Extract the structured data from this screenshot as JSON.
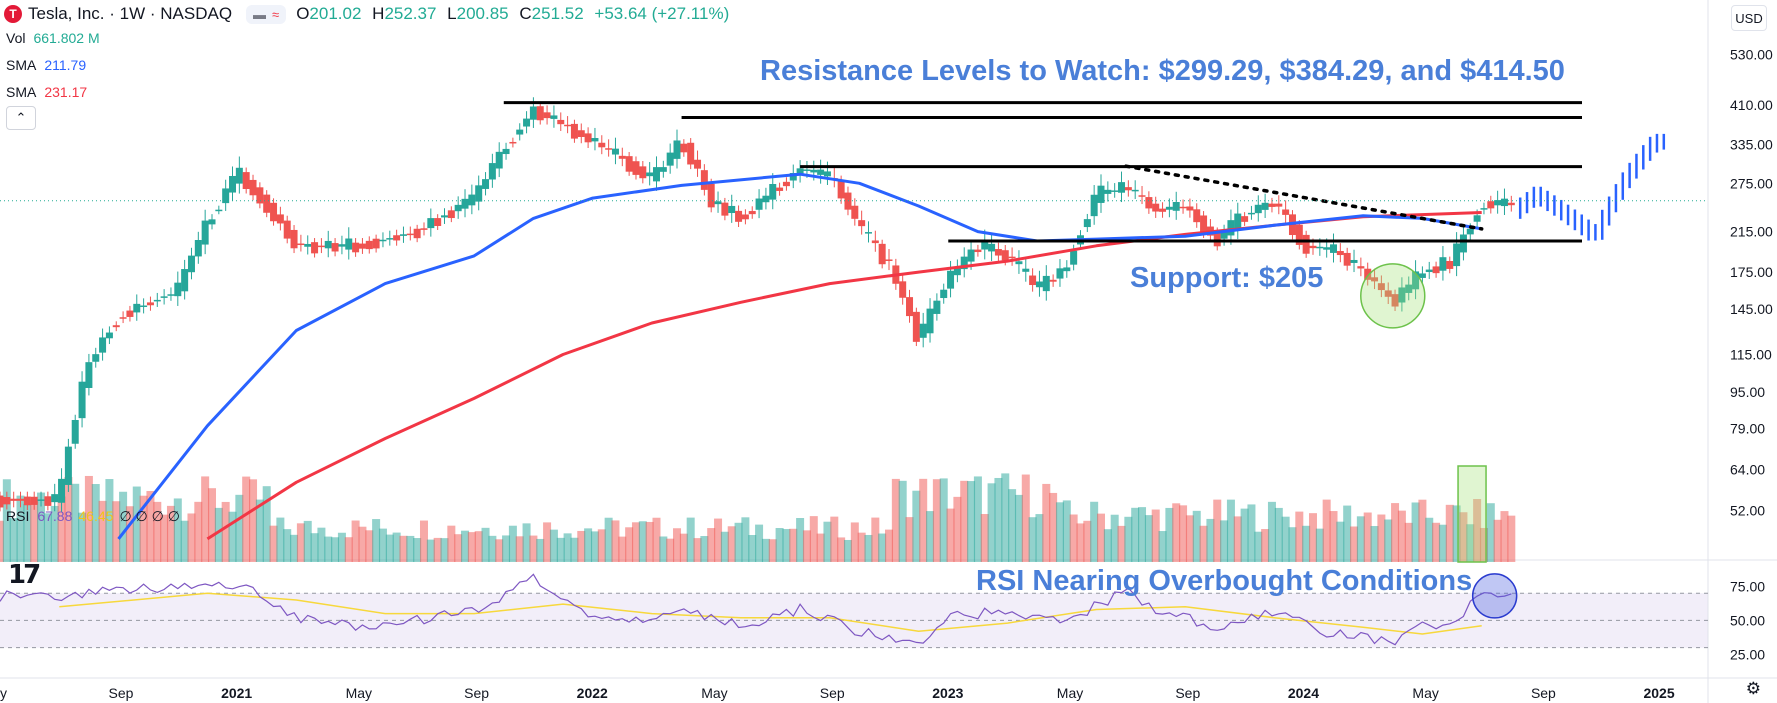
{
  "header": {
    "logo_letter": "T",
    "title": "Tesla, Inc. · 1W · NASDAQ",
    "ohlc": {
      "o_label": "O",
      "o_value": "201.02",
      "h_label": "H",
      "h_value": "252.37",
      "l_label": "L",
      "l_value": "200.85",
      "c_label": "C",
      "c_value": "251.52",
      "change": "+53.64 (+27.11%)"
    },
    "currency": "USD"
  },
  "legend": {
    "vol_label": "Vol",
    "vol_value": "661.802 M",
    "sma1_label": "SMA",
    "sma1_value": "211.79",
    "sma2_label": "SMA",
    "sma2_value": "231.17",
    "rsi_label": "RSI",
    "rsi_value": "67.88",
    "rsi_ma_value": "46.45",
    "rsi_extra": "∅ ∅ ∅ ∅"
  },
  "annotations": {
    "resistance": "Resistance Levels to Watch: $299.29, $384.29, and $414.50",
    "support": "Support: $205",
    "rsi": "RSI Nearing Overbought Conditions"
  },
  "colors": {
    "up": "#26a69a",
    "down": "#ef5350",
    "sma_blue": "#2962ff",
    "sma_red": "#f23645",
    "projection": "#2962ff",
    "annotation": "#4a7fd8",
    "rsi_line": "#7e57c2",
    "rsi_ma": "#f7d83c"
  },
  "chart_data": {
    "type": "candlestick",
    "interval": "1W",
    "scale": "log",
    "y_ticks": [
      "530.00",
      "410.00",
      "335.00",
      "275.00",
      "215.00",
      "175.00",
      "145.00",
      "115.00",
      "95.00",
      "79.00",
      "64.00",
      "52.00"
    ],
    "x_ticks": [
      "y",
      "Sep",
      "2021",
      "May",
      "Sep",
      "2022",
      "May",
      "Sep",
      "2023",
      "May",
      "Sep",
      "2024",
      "May",
      "Sep",
      "2025"
    ],
    "resistance_levels": [
      299.29,
      384.29,
      414.5
    ],
    "support_level": 205,
    "last_close": 251.52,
    "price_path": [
      [
        "2020-07",
        55
      ],
      [
        "2020-08",
        110
      ],
      [
        "2020-09",
        140
      ],
      [
        "2020-11",
        160
      ],
      [
        "2021-01",
        290
      ],
      [
        "2021-03",
        200
      ],
      [
        "2021-05",
        200
      ],
      [
        "2021-07",
        215
      ],
      [
        "2021-09",
        255
      ],
      [
        "2021-11",
        400
      ],
      [
        "2022-01",
        340
      ],
      [
        "2022-03",
        280
      ],
      [
        "2022-04",
        340
      ],
      [
        "2022-05",
        250
      ],
      [
        "2022-06",
        230
      ],
      [
        "2022-08",
        295
      ],
      [
        "2022-09",
        285
      ],
      [
        "2022-10",
        220
      ],
      [
        "2022-11",
        180
      ],
      [
        "2022-12",
        123
      ],
      [
        "2023-01",
        170
      ],
      [
        "2023-02",
        200
      ],
      [
        "2023-03",
        190
      ],
      [
        "2023-04",
        160
      ],
      [
        "2023-05",
        180
      ],
      [
        "2023-06",
        260
      ],
      [
        "2023-07",
        270
      ],
      [
        "2023-08",
        240
      ],
      [
        "2023-09",
        245
      ],
      [
        "2023-10",
        205
      ],
      [
        "2023-11",
        235
      ],
      [
        "2023-12",
        250
      ],
      [
        "2024-01",
        200
      ],
      [
        "2024-02",
        195
      ],
      [
        "2024-03",
        175
      ],
      [
        "2024-04",
        150
      ],
      [
        "2024-05",
        175
      ],
      [
        "2024-06",
        185
      ],
      [
        "2024-07",
        248
      ]
    ],
    "sma_blue": [
      [
        "2020-09",
        45
      ],
      [
        "2020-12",
        80
      ],
      [
        "2021-03",
        130
      ],
      [
        "2021-06",
        165
      ],
      [
        "2021-09",
        190
      ],
      [
        "2021-11",
        230
      ],
      [
        "2022-01",
        255
      ],
      [
        "2022-04",
        272
      ],
      [
        "2022-08",
        288
      ],
      [
        "2022-10",
        275
      ],
      [
        "2022-12",
        245
      ],
      [
        "2023-02",
        215
      ],
      [
        "2023-04",
        205
      ],
      [
        "2023-06",
        207
      ],
      [
        "2023-09",
        210
      ],
      [
        "2023-12",
        222
      ],
      [
        "2024-03",
        233
      ],
      [
        "2024-05",
        230
      ],
      [
        "2024-07",
        218
      ]
    ],
    "sma_red": [
      [
        "2020-12",
        45
      ],
      [
        "2021-03",
        60
      ],
      [
        "2021-06",
        75
      ],
      [
        "2021-09",
        92
      ],
      [
        "2021-12",
        115
      ],
      [
        "2022-03",
        135
      ],
      [
        "2022-06",
        150
      ],
      [
        "2022-09",
        165
      ],
      [
        "2022-12",
        175
      ],
      [
        "2023-03",
        185
      ],
      [
        "2023-06",
        200
      ],
      [
        "2023-09",
        212
      ],
      [
        "2023-12",
        222
      ],
      [
        "2024-03",
        232
      ],
      [
        "2024-07",
        237
      ]
    ],
    "projection_path": [
      [
        "2024-07",
        145
      ],
      [
        "2024-08",
        230
      ],
      [
        "2024-09",
        260
      ],
      [
        "2024-10",
        235
      ],
      [
        "2024-11",
        210
      ],
      [
        "2024-12",
        280
      ],
      [
        "2025-01",
        340
      ]
    ],
    "rsi": {
      "ticks": [
        "75.00",
        "50.00",
        "25.00"
      ],
      "overbought": 70,
      "oversold": 30,
      "path": [
        [
          "2020-07",
          68
        ],
        [
          "2020-09",
          72
        ],
        [
          "2020-12",
          75
        ],
        [
          "2021-01",
          77
        ],
        [
          "2021-03",
          52
        ],
        [
          "2021-05",
          45
        ],
        [
          "2021-07",
          50
        ],
        [
          "2021-09",
          58
        ],
        [
          "2021-11",
          80
        ],
        [
          "2021-12",
          62
        ],
        [
          "2022-02",
          48
        ],
        [
          "2022-04",
          60
        ],
        [
          "2022-06",
          45
        ],
        [
          "2022-08",
          58
        ],
        [
          "2022-10",
          42
        ],
        [
          "2022-12",
          30
        ],
        [
          "2023-01",
          55
        ],
        [
          "2023-03",
          55
        ],
        [
          "2023-05",
          50
        ],
        [
          "2023-07",
          72
        ],
        [
          "2023-08",
          58
        ],
        [
          "2023-10",
          45
        ],
        [
          "2023-12",
          55
        ],
        [
          "2024-02",
          40
        ],
        [
          "2024-04",
          35
        ],
        [
          "2024-05",
          45
        ],
        [
          "2024-06",
          48
        ],
        [
          "2024-07",
          68
        ]
      ],
      "ma_path": [
        [
          "2020-07",
          60
        ],
        [
          "2020-12",
          70
        ],
        [
          "2021-03",
          65
        ],
        [
          "2021-06",
          55
        ],
        [
          "2021-09",
          55
        ],
        [
          "2021-12",
          62
        ],
        [
          "2022-03",
          55
        ],
        [
          "2022-06",
          52
        ],
        [
          "2022-09",
          52
        ],
        [
          "2022-12",
          42
        ],
        [
          "2023-03",
          48
        ],
        [
          "2023-06",
          58
        ],
        [
          "2023-09",
          60
        ],
        [
          "2023-12",
          52
        ],
        [
          "2024-03",
          45
        ],
        [
          "2024-05",
          40
        ],
        [
          "2024-07",
          46
        ]
      ]
    }
  }
}
